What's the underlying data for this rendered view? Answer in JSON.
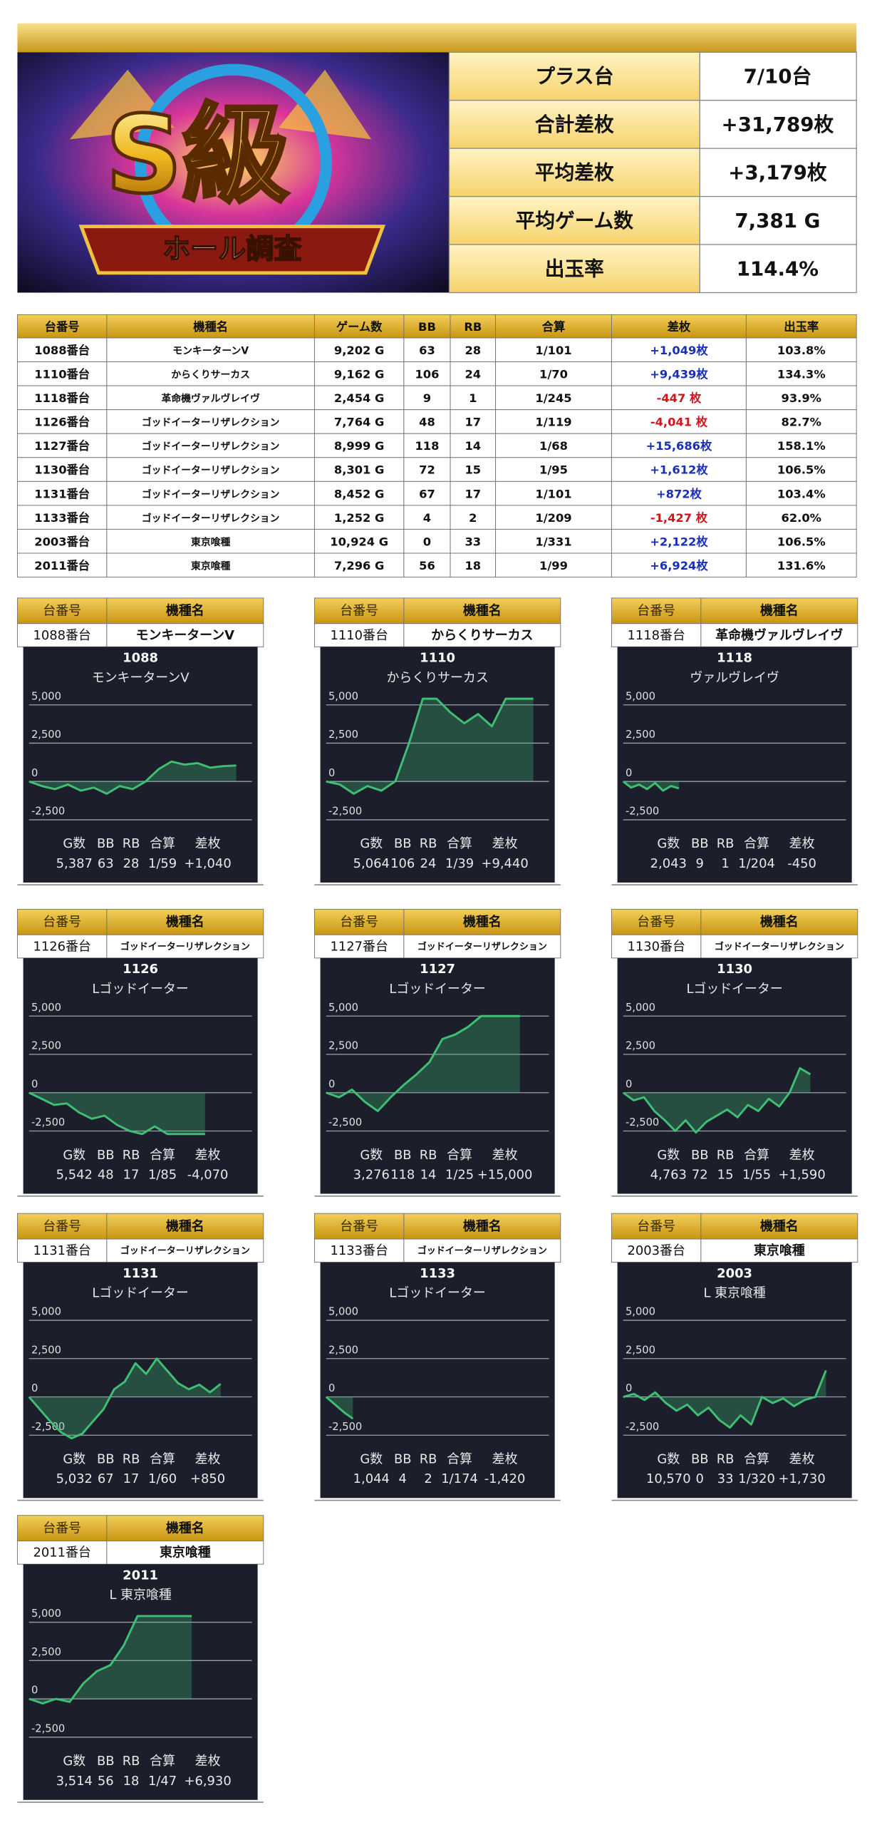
{
  "banner": {
    "title": "S級",
    "subtitle": "ホール調査"
  },
  "summary": {
    "rows": [
      [
        "プラス台",
        "7/10台"
      ],
      [
        "合計差枚",
        "+31,789枚"
      ],
      [
        "平均差枚",
        "+3,179枚"
      ],
      [
        "平均ゲーム数",
        "7,381 G"
      ],
      [
        "出玉率",
        "114.4%"
      ]
    ]
  },
  "table": {
    "header": [
      "台番号",
      "機種名",
      "ゲーム数",
      "BB",
      "RB",
      "合算",
      "差枚",
      "出玉率"
    ],
    "rows": [
      [
        "1088番台",
        "モンキーターンV",
        "9,202 G",
        "63",
        "28",
        "1/101",
        "+1,049枚",
        "103.8%"
      ],
      [
        "1110番台",
        "からくりサーカス",
        "9,162 G",
        "106",
        "24",
        "1/70",
        "+9,439枚",
        "134.3%"
      ],
      [
        "1118番台",
        "革命機ヴァルヴレイヴ",
        "2,454 G",
        "9",
        "1",
        "1/245",
        "-447 枚",
        "93.9%"
      ],
      [
        "1126番台",
        "ゴッドイーターリザレクション",
        "7,764 G",
        "48",
        "17",
        "1/119",
        "-4,041 枚",
        "82.7%"
      ],
      [
        "1127番台",
        "ゴッドイーターリザレクション",
        "8,999 G",
        "118",
        "14",
        "1/68",
        "+15,686枚",
        "158.1%"
      ],
      [
        "1130番台",
        "ゴッドイーターリザレクション",
        "8,301 G",
        "72",
        "15",
        "1/95",
        "+1,612枚",
        "106.5%"
      ],
      [
        "1131番台",
        "ゴッドイーターリザレクション",
        "8,452 G",
        "67",
        "17",
        "1/101",
        "+872枚",
        "103.4%"
      ],
      [
        "1133番台",
        "ゴッドイーターリザレクション",
        "1,252 G",
        "4",
        "2",
        "1/209",
        "-1,427 枚",
        "62.0%"
      ],
      [
        "2003番台",
        "東京喰種",
        "10,924 G",
        "0",
        "33",
        "1/331",
        "+2,122枚",
        "106.5%"
      ],
      [
        "2011番台",
        "東京喰種",
        "7,296 G",
        "56",
        "18",
        "1/99",
        "+6,924枚",
        "131.6%"
      ]
    ]
  },
  "panel_header": [
    "台番号",
    "機種名"
  ],
  "stat_labels": [
    "G数",
    "BB",
    "RB",
    "合算",
    "差枚"
  ],
  "graph": {
    "ylim": [
      -2700,
      5400
    ],
    "yticks": [
      {
        "value": 5000,
        "label": "5,000"
      },
      {
        "value": 2500,
        "label": "2,500"
      },
      0,
      {
        "value": -2500,
        "label": "-2,500"
      }
    ],
    "line_color": "#3fbf74",
    "grid": true
  },
  "panels": [
    {
      "id": "1088番台",
      "name": "モンキーターンV",
      "title": "1088",
      "subtitle": "モンキーターンV",
      "points": [
        0,
        -300,
        -500,
        -200,
        -600,
        -400,
        -800,
        -300,
        -500,
        0,
        800,
        1300,
        1100,
        1200,
        900,
        1000,
        1040
      ],
      "stats": [
        "5,387",
        "63",
        "28",
        "1/59",
        "+1,040"
      ]
    },
    {
      "id": "1110番台",
      "name": "からくりサーカス",
      "title": "1110",
      "subtitle": "からくりサーカス",
      "points": [
        0,
        -200,
        -800,
        -300,
        -600,
        0,
        2500,
        5400,
        5400,
        4500,
        3800,
        4400,
        3600,
        5400,
        5400,
        5400
      ],
      "stats": [
        "5,064",
        "106",
        "24",
        "1/39",
        "+9,440"
      ]
    },
    {
      "id": "1118番台",
      "name": "革命機ヴァルヴレイヴ",
      "title": "1118",
      "subtitle": "ヴァルヴレイヴ",
      "points": [
        0,
        -400,
        -200,
        -500,
        -100,
        -600,
        -300,
        -450
      ],
      "stats": [
        "2,043",
        "9",
        "1",
        "1/204",
        "-450"
      ]
    },
    {
      "id": "1126番台",
      "name": "ゴッドイーターリザレクション",
      "title": "1126",
      "subtitle": "Lゴッドイーター",
      "points": [
        0,
        -400,
        -800,
        -700,
        -1300,
        -1700,
        -1500,
        -2100,
        -2500,
        -2700,
        -2200,
        -2700,
        -2700,
        -2700,
        -2700
      ],
      "stats": [
        "5,542",
        "48",
        "17",
        "1/85",
        "-4,070"
      ]
    },
    {
      "id": "1127番台",
      "name": "ゴッドイーターリザレクション",
      "title": "1127",
      "subtitle": "Lゴッドイーター",
      "points": [
        0,
        -300,
        200,
        -600,
        -1200,
        -300,
        500,
        1200,
        2000,
        3500,
        3800,
        4300,
        5000,
        5000,
        5000,
        5000
      ],
      "stats": [
        "3,276",
        "118",
        "14",
        "1/25",
        "+15,000"
      ]
    },
    {
      "id": "1130番台",
      "name": "ゴッドイーターリザレクション",
      "title": "1130",
      "subtitle": "Lゴッドイーター",
      "points": [
        0,
        -500,
        -300,
        -1200,
        -1800,
        -2500,
        -1800,
        -2600,
        -1900,
        -1500,
        -1100,
        -1600,
        -800,
        -1200,
        -400,
        -900,
        0,
        1600,
        1200
      ],
      "stats": [
        "4,763",
        "72",
        "15",
        "1/55",
        "+1,590"
      ]
    },
    {
      "id": "1131番台",
      "name": "ゴッドイーターリザレクション",
      "title": "1131",
      "subtitle": "Lゴッドイーター",
      "points": [
        0,
        -800,
        -1600,
        -2300,
        -2700,
        -2400,
        -1600,
        -800,
        500,
        1000,
        2200,
        1500,
        2500,
        1700,
        900,
        500,
        800,
        300,
        850
      ],
      "stats": [
        "5,032",
        "67",
        "17",
        "1/60",
        "+850"
      ]
    },
    {
      "id": "1133番台",
      "name": "ゴッドイーターリザレクション",
      "title": "1133",
      "subtitle": "Lゴッドイーター",
      "points": [
        0,
        -500,
        -1000,
        -1420
      ],
      "stats": [
        "1,044",
        "4",
        "2",
        "1/174",
        "-1,420"
      ]
    },
    {
      "id": "2003番台",
      "name": "東京喰種",
      "title": "2003",
      "subtitle": "L 東京喰種",
      "points": [
        0,
        200,
        -200,
        300,
        -400,
        -900,
        -500,
        -1200,
        -700,
        -1500,
        -2000,
        -1200,
        -1800,
        0,
        -400,
        -100,
        -600,
        -200,
        0,
        1730
      ],
      "stats": [
        "10,570",
        "0",
        "33",
        "1/320",
        "+1,730"
      ]
    },
    {
      "id": "2011番台",
      "name": "東京喰種",
      "title": "2011",
      "subtitle": "L 東京喰種",
      "points": [
        0,
        -300,
        0,
        -200,
        1000,
        1800,
        2200,
        3500,
        5400,
        5400,
        5400,
        5400,
        5400
      ],
      "stats": [
        "3,514",
        "56",
        "18",
        "1/47",
        "+6,930"
      ]
    }
  ]
}
